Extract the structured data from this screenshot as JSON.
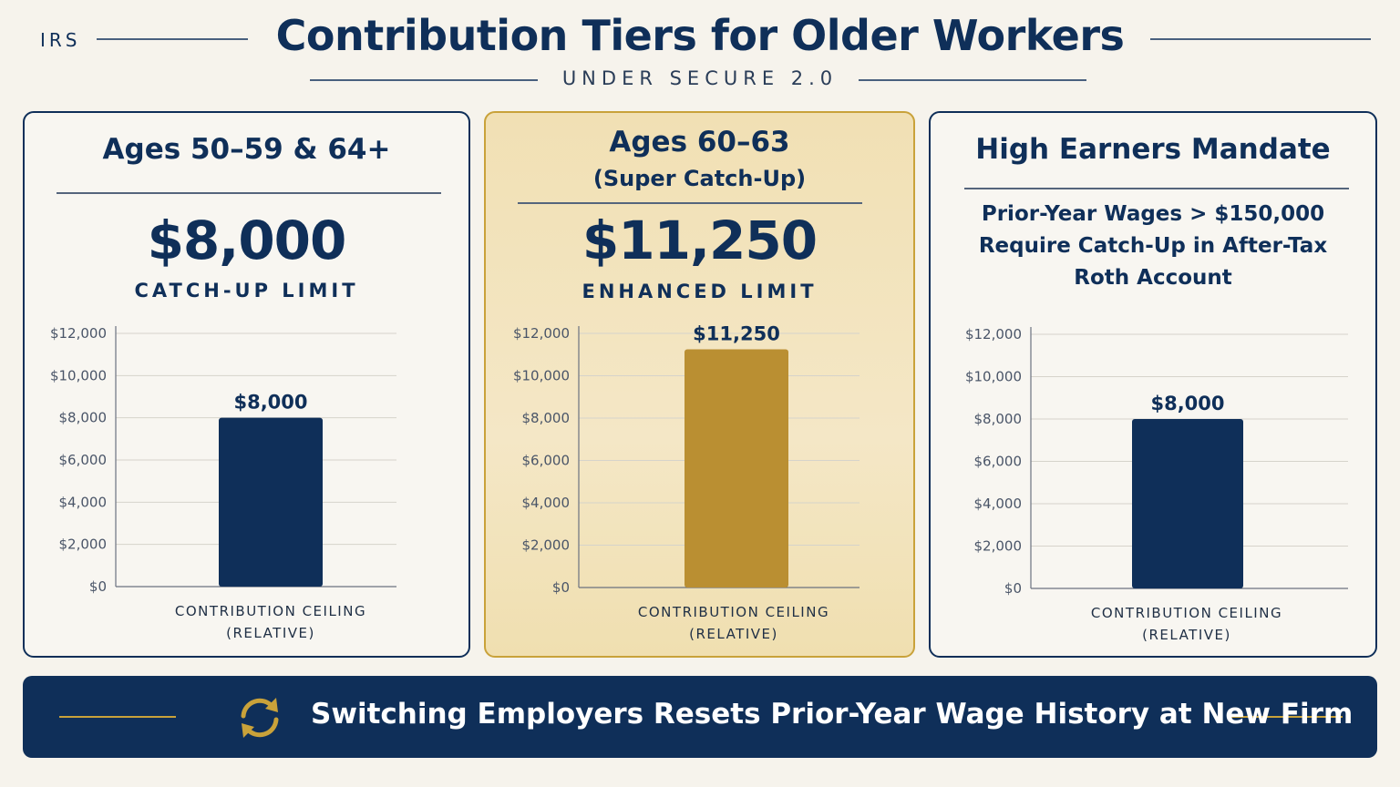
{
  "header": {
    "brand": "IRS",
    "title": "Contribution Tiers for Older Workers",
    "subtitle": "UNDER SECURE 2.0"
  },
  "colors": {
    "navy": "#0f2f59",
    "gold": "#ba8f32",
    "gold_border": "#c9a23a",
    "background": "#f6f3ec"
  },
  "panels": [
    {
      "title": "Ages 50–59 & 64+",
      "amount": "$8,000",
      "caption": "CATCH-UP LIMIT"
    },
    {
      "title": "Ages 60–63",
      "subtitle": "(Super Catch-Up)",
      "amount": "$11,250",
      "caption": "ENHANCED LIMIT"
    },
    {
      "title": "High Earners Mandate",
      "description": [
        "Prior-Year Wages > $150,000",
        "Require Catch-Up in After-Tax",
        "Roth Account"
      ]
    }
  ],
  "chart_data": [
    {
      "type": "bar",
      "categories": [
        "CONTRIBUTION CEILING (RELATIVE)"
      ],
      "xlabel_lines": [
        "CONTRIBUTION CEILING",
        "(RELATIVE)"
      ],
      "values": [
        8000
      ],
      "data_labels": [
        "$8,000"
      ],
      "ylim": [
        0,
        12000
      ],
      "yticks": [
        0,
        2000,
        4000,
        6000,
        8000,
        10000,
        12000
      ],
      "ytick_labels": [
        "$0",
        "$2,000",
        "$4,000",
        "$6,000",
        "$8,000",
        "$10,000",
        "$12,000"
      ],
      "bar_color": "#0f2f59",
      "grid": true
    },
    {
      "type": "bar",
      "categories": [
        "CONTRIBUTION CEILING (RELATIVE)"
      ],
      "xlabel_lines": [
        "CONTRIBUTION CEILING",
        "(RELATIVE)"
      ],
      "values": [
        11250
      ],
      "data_labels": [
        "$11,250"
      ],
      "ylim": [
        0,
        12000
      ],
      "yticks": [
        0,
        2000,
        4000,
        6000,
        8000,
        10000,
        12000
      ],
      "ytick_labels": [
        "$0",
        "$2,000",
        "$4,000",
        "$6,000",
        "$8,000",
        "$10,000",
        "$12,000"
      ],
      "bar_color": "#ba8f32",
      "grid": true
    },
    {
      "type": "bar",
      "categories": [
        "CONTRIBUTION CEILING (RELATIVE)"
      ],
      "xlabel_lines": [
        "CONTRIBUTION CEILING",
        "(RELATIVE)"
      ],
      "values": [
        8000
      ],
      "data_labels": [
        "$8,000"
      ],
      "ylim": [
        0,
        12000
      ],
      "yticks": [
        0,
        2000,
        4000,
        6000,
        8000,
        10000,
        12000
      ],
      "ytick_labels": [
        "$0",
        "$2,000",
        "$4,000",
        "$6,000",
        "$8,000",
        "$10,000",
        "$12,000"
      ],
      "bar_color": "#0f2f59",
      "grid": true
    }
  ],
  "banner": {
    "icon": "refresh-cycle-icon",
    "text": "Switching Employers Resets Prior-Year Wage History at New Firm"
  }
}
